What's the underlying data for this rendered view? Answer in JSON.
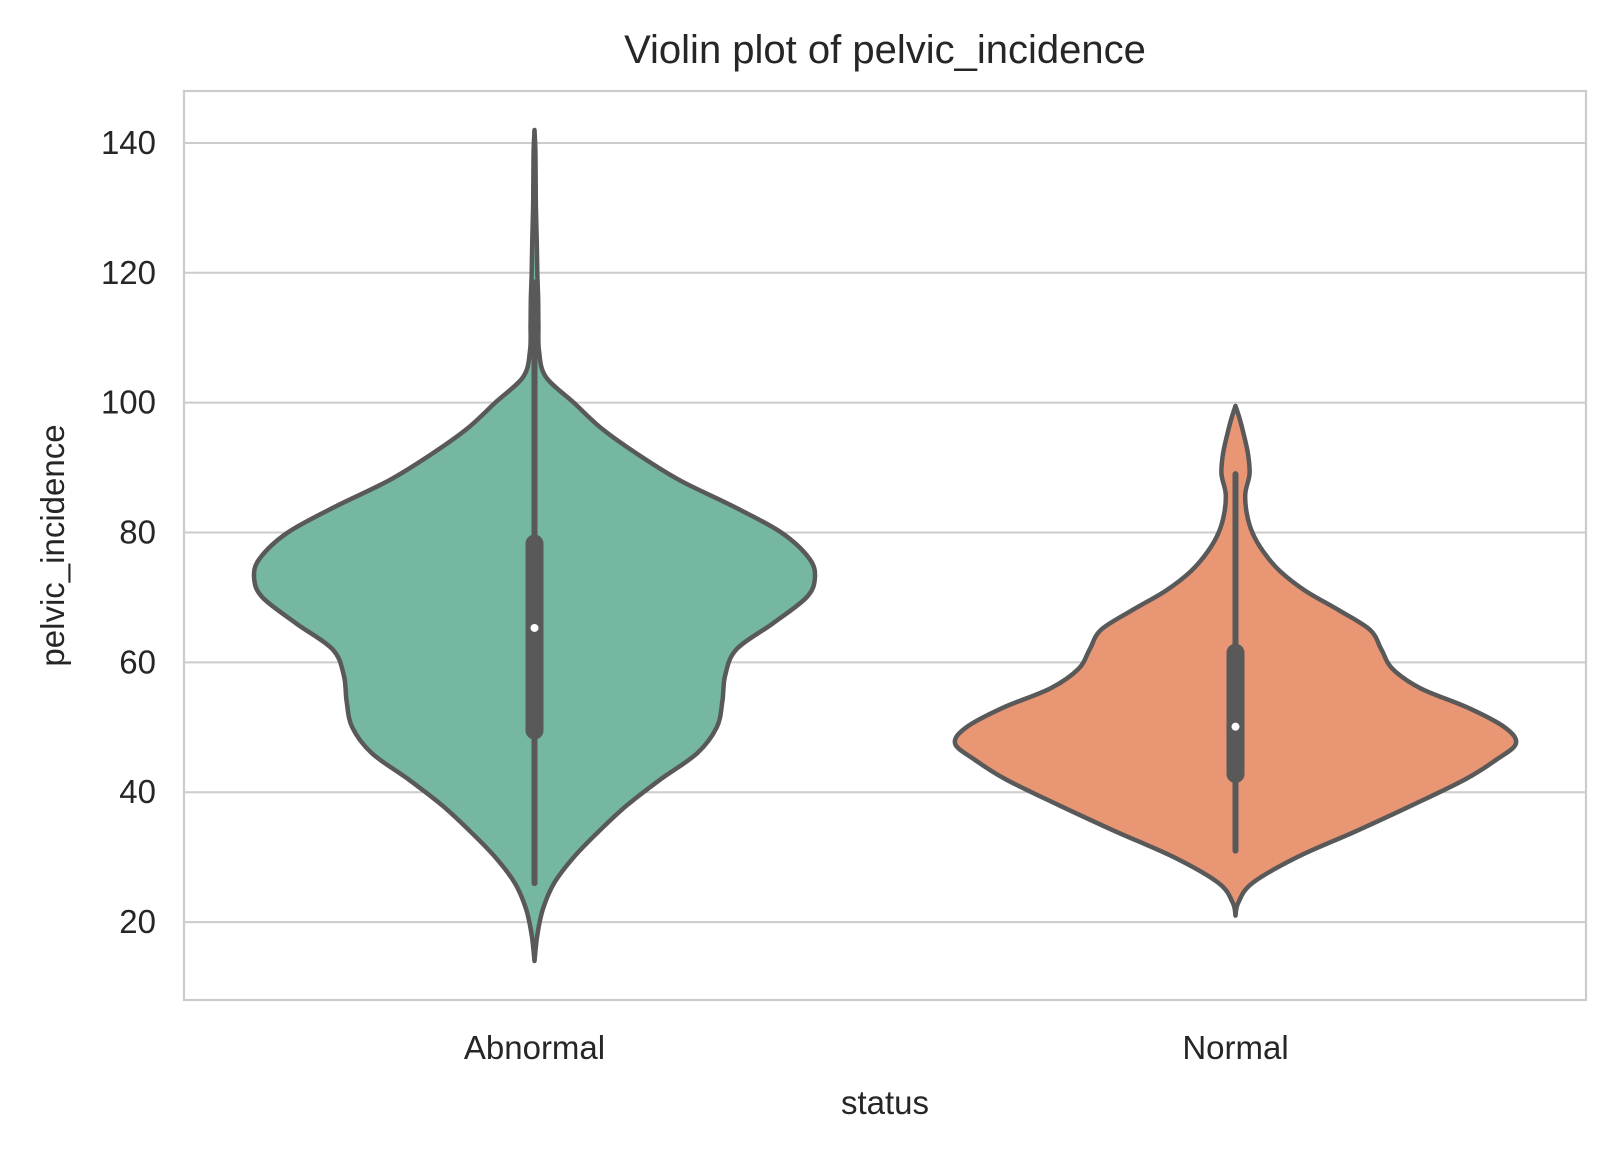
{
  "chart_data": {
    "type": "violin",
    "title": "Violin plot of pelvic_incidence",
    "xlabel": "status",
    "ylabel": "pelvic_incidence",
    "categories": [
      "Abnormal",
      "Normal"
    ],
    "ylim": [
      8,
      148
    ],
    "yticks": [
      20,
      40,
      60,
      80,
      100,
      120,
      140
    ],
    "grid": "horizontal",
    "colors": {
      "Abnormal": "#75b7a1",
      "Normal": "#e99675",
      "outline": "#595959",
      "grid": "#cccccc",
      "frame": "#cccccc",
      "median_dot": "#ffffff"
    },
    "violins": [
      {
        "name": "Abnormal",
        "density_profile": [
          [
            14,
            0.0
          ],
          [
            18,
            0.01
          ],
          [
            22,
            0.03
          ],
          [
            26,
            0.07
          ],
          [
            30,
            0.14
          ],
          [
            34,
            0.23
          ],
          [
            38,
            0.33
          ],
          [
            42,
            0.45
          ],
          [
            46,
            0.58
          ],
          [
            50,
            0.65
          ],
          [
            54,
            0.67
          ],
          [
            58,
            0.68
          ],
          [
            62,
            0.72
          ],
          [
            66,
            0.85
          ],
          [
            70,
            0.97
          ],
          [
            73,
            1.0
          ],
          [
            76,
            0.98
          ],
          [
            80,
            0.88
          ],
          [
            84,
            0.71
          ],
          [
            88,
            0.52
          ],
          [
            92,
            0.37
          ],
          [
            96,
            0.24
          ],
          [
            100,
            0.14
          ],
          [
            104,
            0.04
          ],
          [
            108,
            0.016
          ],
          [
            112,
            0.014
          ],
          [
            116,
            0.013
          ],
          [
            120,
            0.01
          ],
          [
            125,
            0.008
          ],
          [
            130,
            0.005
          ],
          [
            135,
            0.004
          ],
          [
            139,
            0.003
          ],
          [
            142,
            0.0
          ]
        ],
        "whisker_min": 26,
        "q1": 49.5,
        "median": 65.3,
        "q3": 78.3,
        "whisker_max": 118.5
      },
      {
        "name": "Normal",
        "density_profile": [
          [
            21,
            0.0
          ],
          [
            23,
            0.01
          ],
          [
            26,
            0.06
          ],
          [
            30,
            0.22
          ],
          [
            34,
            0.43
          ],
          [
            38,
            0.63
          ],
          [
            42,
            0.82
          ],
          [
            45,
            0.93
          ],
          [
            47.5,
            1.0
          ],
          [
            50,
            0.96
          ],
          [
            53,
            0.83
          ],
          [
            56,
            0.66
          ],
          [
            59,
            0.56
          ],
          [
            62,
            0.52
          ],
          [
            65,
            0.48
          ],
          [
            68,
            0.37
          ],
          [
            71,
            0.25
          ],
          [
            74,
            0.16
          ],
          [
            77,
            0.1
          ],
          [
            80,
            0.06
          ],
          [
            83,
            0.04
          ],
          [
            86,
            0.035
          ],
          [
            89,
            0.05
          ],
          [
            92,
            0.045
          ],
          [
            95,
            0.03
          ],
          [
            97.5,
            0.015
          ],
          [
            99.5,
            0.0
          ]
        ],
        "whisker_min": 31,
        "q1": 42.8,
        "median": 50.1,
        "q3": 61.5,
        "whisker_max": 89
      }
    ]
  }
}
